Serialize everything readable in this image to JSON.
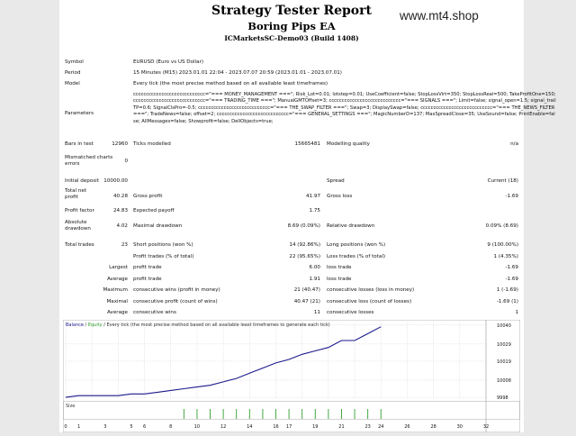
{
  "header": {
    "title": "Strategy Tester Report",
    "ea_name": "Boring Pips EA",
    "server": "ICMarketsSC-Demo03 (Build 1408)",
    "watermark": "www.mt4.shop"
  },
  "info": {
    "symbol_label": "Symbol",
    "symbol_value": "EURUSD (Euro vs US Dollar)",
    "period_label": "Period",
    "period_value": "15 Minutes (M15) 2023.01.01 22:04 - 2023.07.07 20:59 (2023.01.01 - 2023.07.01)",
    "model_label": "Model",
    "model_value": "Every tick (the most precise method based on all available least timeframes)",
    "parameters_label": "Parameters",
    "parameters_value": "cccccccccccccccccccccccccccc=\"=== MONEY_MANAGEMENT ===\"; Risk_Lot=0.01; lotstep=0.01; UseCoefficient=false; StopLossVirt=350; StopLossReal=500; TakeProfitOne=150; cccccccccccccccccccccccccccc=\"=== TRADING_TIME ===\"; ManualGMTOffset=3; cccccccccccccccccccccccccccc=\"=== SIGNALS ===\"; Limit=false; signal_open=1.5; signal_trailTP=0.6; SignalClsPro=-0.5; cccccccccccccccccccccccccccc=\"=== THE_SWAP_FILTER ===\"; Swap=3; DisplaySwap=false; cccccccccccccccccccccccccccc=\"=== THE_NEWS_FILTER ===\"; TradeNews=false; offset=2; cccccccccccccccccccccccccccc=\"=== GENERAL_SETTINGS ===\"; MagicNumberD=137; MaxSpreadClose=35; UseSound=false; PrintEnable=false; AllMessages=false; Showprofit=false; DellObjects=true;"
  },
  "stats": {
    "bars_label": "Bars in test",
    "bars_value": "12960",
    "ticks_label": "Ticks modelled",
    "ticks_value": "15665481",
    "quality_label": "Modelling quality",
    "quality_value": "n/a",
    "mismatch_label": "Mismatched charts errors",
    "mismatch_value": "0",
    "deposit_label": "Initial deposit",
    "deposit_value": "10000.00",
    "spread_label": "Spread",
    "spread_value": "Current (18)",
    "net_label": "Total net profit",
    "net_value": "40.28",
    "gross_profit_label": "Gross profit",
    "gross_profit_value": "41.97",
    "gross_loss_label": "Gross loss",
    "gross_loss_value": "-1.69",
    "pf_label": "Profit factor",
    "pf_value": "24.83",
    "payoff_label": "Expected payoff",
    "payoff_value": "1.75",
    "abs_dd_label": "Absolute drawdown",
    "abs_dd_value": "4.02",
    "max_dd_label": "Maximal drawdown",
    "max_dd_value": "8.69 (0.09%)",
    "rel_dd_label": "Relative drawdown",
    "rel_dd_value": "0.09% (8.69)",
    "trades_label": "Total trades",
    "trades_value": "23",
    "short_label": "Short positions (won %)",
    "short_value": "14 (92.86%)",
    "long_label": "Long positions (won %)",
    "long_value": "9 (100.00%)",
    "profit_trades_label": "Profit trades (% of total)",
    "profit_trades_value": "22 (95.65%)",
    "loss_trades_label": "Loss trades (% of total)",
    "loss_trades_value": "1 (4.35%)",
    "largest_label": "Largest",
    "largest_profit_label": "profit trade",
    "largest_profit_value": "6.00",
    "largest_loss_label": "loss trade",
    "largest_loss_value": "-1.69",
    "average_label": "Average",
    "avg_profit_label": "profit trade",
    "avg_profit_value": "1.91",
    "avg_loss_label": "loss trade",
    "avg_loss_value": "-1.69",
    "maximum_label": "Maximum",
    "max_cw_label": "consecutive wins (profit in money)",
    "max_cw_value": "21 (40.47)",
    "max_cl_label": "consecutive losses (loss in money)",
    "max_cl_value": "1 (-1.69)",
    "maximal_label": "Maximal",
    "maximal_cp_label": "consecutive profit (count of wins)",
    "maximal_cp_value": "40.47 (21)",
    "maximal_cl_label": "consecutive loss (count of losses)",
    "maximal_cl_value": "-1.69 (1)",
    "average2_label": "Average",
    "avg_cw_label": "consecutive wins",
    "avg_cw_value": "11",
    "avg_cl_label": "consecutive losses",
    "avg_cl_value": "1"
  },
  "chart_data": {
    "type": "line",
    "legend": {
      "balance": "Balance",
      "equity": "Equity",
      "rest": "Every tick (the most precise method based on all available least timeframes to generate each tick)"
    },
    "colors": {
      "balance": "#1a1a8c",
      "equity": "#2e9e2e",
      "volume": "#2e9e2e",
      "grid": "#c8c8c8"
    },
    "x": [
      0,
      1,
      2,
      3,
      4,
      5,
      6,
      7,
      8,
      9,
      10,
      11,
      12,
      13,
      14,
      15,
      16,
      17,
      18,
      19,
      20,
      21,
      22,
      23,
      24
    ],
    "series": [
      {
        "name": "Balance",
        "values": [
          9998,
          9999,
          9999,
          9999,
          9999,
          10000,
          10000,
          10001,
          10002,
          10003,
          10004,
          10005,
          10007,
          10009,
          10012,
          10015,
          10018,
          10020,
          10023,
          10025,
          10027,
          10031,
          10031,
          10035,
          10039
        ]
      }
    ],
    "y_ticks": [
      9998,
      10008,
      10019,
      10029,
      10040
    ],
    "ylim": [
      9997,
      10042
    ],
    "volume_label": "Size",
    "volume_bars": [
      9,
      10,
      11,
      12,
      13,
      14,
      15,
      16,
      17,
      18,
      19,
      20,
      21,
      22,
      23,
      24
    ],
    "x_ticks": [
      0,
      1,
      3,
      5,
      6,
      8,
      10,
      12,
      14,
      16,
      17,
      19,
      21,
      23,
      24,
      26,
      28,
      30,
      32
    ],
    "xlim": [
      0,
      32
    ]
  }
}
